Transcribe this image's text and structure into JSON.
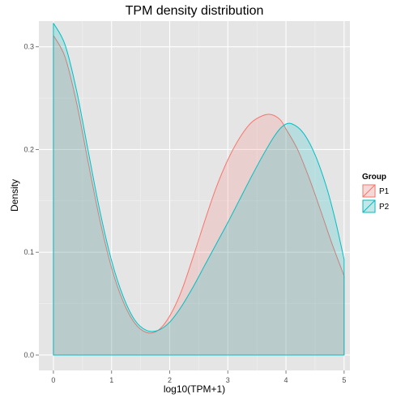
{
  "chart_data": {
    "type": "area",
    "title": "TPM density distribution",
    "xlabel": "log10(TPM+1)",
    "ylabel": "Density",
    "xlim": [
      -0.25,
      5.1
    ],
    "ylim": [
      -0.015,
      0.325
    ],
    "x_ticks": [
      0,
      1,
      2,
      3,
      4,
      5
    ],
    "x_tick_labels": [
      "0",
      "1",
      "2",
      "3",
      "4",
      "5"
    ],
    "y_ticks": [
      0.0,
      0.1,
      0.2,
      0.3
    ],
    "y_tick_labels": [
      "0.0",
      "0.1",
      "0.2",
      "0.3"
    ],
    "grid": true,
    "legend_title": "Group",
    "legend_position": "right",
    "series": [
      {
        "name": "P1",
        "color": "#F8766D",
        "x": [
          0,
          0.2,
          0.4,
          0.6,
          0.8,
          1.0,
          1.2,
          1.4,
          1.6,
          1.8,
          2.0,
          2.2,
          2.4,
          2.6,
          2.8,
          3.0,
          3.2,
          3.4,
          3.6,
          3.75,
          3.9,
          4.0,
          4.2,
          4.4,
          4.6,
          4.8,
          5.0
        ],
        "y": [
          0.311,
          0.29,
          0.245,
          0.187,
          0.131,
          0.085,
          0.052,
          0.031,
          0.022,
          0.024,
          0.038,
          0.062,
          0.095,
          0.13,
          0.163,
          0.19,
          0.211,
          0.226,
          0.233,
          0.234,
          0.229,
          0.22,
          0.2,
          0.172,
          0.14,
          0.107,
          0.077
        ]
      },
      {
        "name": "P2",
        "color": "#00BFC4",
        "x": [
          0,
          0.2,
          0.4,
          0.6,
          0.8,
          1.0,
          1.2,
          1.4,
          1.6,
          1.8,
          2.0,
          2.2,
          2.4,
          2.6,
          2.8,
          3.0,
          3.2,
          3.4,
          3.6,
          3.8,
          3.95,
          4.1,
          4.3,
          4.5,
          4.7,
          4.85,
          5.0
        ],
        "y": [
          0.323,
          0.302,
          0.257,
          0.198,
          0.14,
          0.092,
          0.057,
          0.034,
          0.024,
          0.024,
          0.032,
          0.047,
          0.066,
          0.087,
          0.108,
          0.129,
          0.151,
          0.173,
          0.194,
          0.213,
          0.223,
          0.225,
          0.216,
          0.195,
          0.163,
          0.131,
          0.093
        ]
      }
    ]
  }
}
